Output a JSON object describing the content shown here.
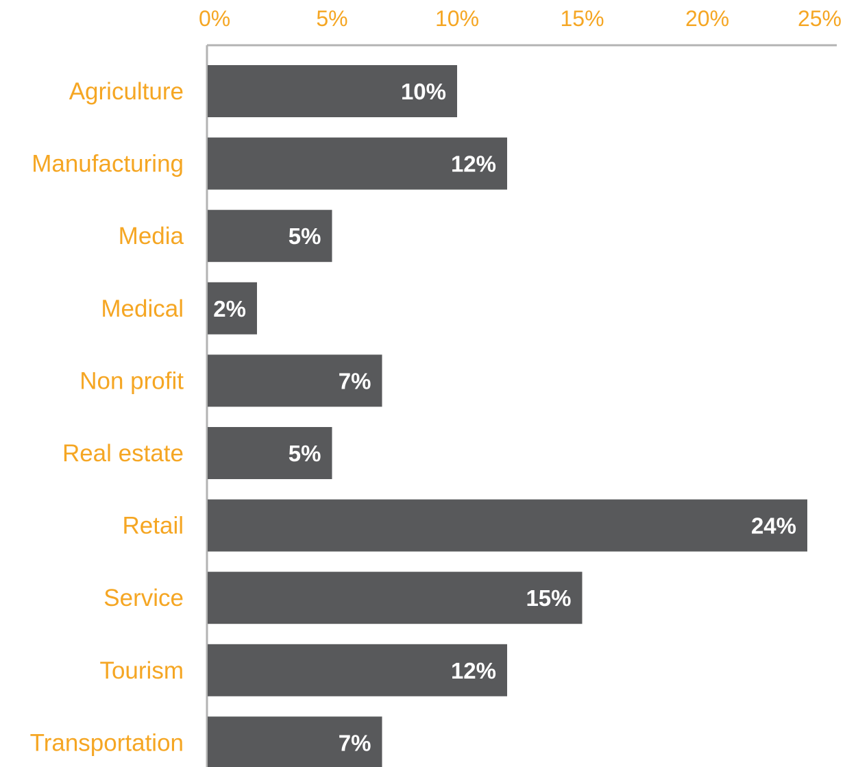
{
  "chart_data": {
    "type": "bar",
    "orientation": "horizontal",
    "categories": [
      "Agriculture",
      "Manufacturing",
      "Media",
      "Medical",
      "Non profit",
      "Real estate",
      "Retail",
      "Service",
      "Tourism",
      "Transportation"
    ],
    "values": [
      10,
      12,
      5,
      2,
      7,
      5,
      24,
      15,
      12,
      7
    ],
    "value_labels": [
      "10%",
      "12%",
      "5%",
      "2%",
      "7%",
      "5%",
      "24%",
      "15%",
      "12%",
      "7%"
    ],
    "x_ticks": [
      0,
      5,
      10,
      15,
      20,
      25
    ],
    "x_tick_labels": [
      "0%",
      "5%",
      "10%",
      "15%",
      "20%",
      "25%"
    ],
    "xlim": [
      0,
      25
    ],
    "x_axis_position": "top",
    "grid": false,
    "legend": "none",
    "title": "",
    "xlabel": "",
    "ylabel": "",
    "colors": {
      "bar": "#58595b",
      "label_text": "#f5a623",
      "value_text": "#ffffff",
      "axis_line": "#b3b3b3"
    }
  }
}
